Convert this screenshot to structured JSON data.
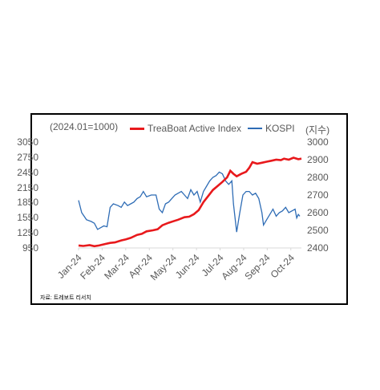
{
  "chart_data": {
    "type": "line",
    "left_axis_note": "(2024.01=1000)",
    "right_axis_unit": "(지수)",
    "source": "자료: 트레보트 리서치",
    "x_ticks": [
      "Jan-24",
      "Feb-24",
      "Mar-24",
      "Apr-24",
      "May-24",
      "Jun-24",
      "Jul-24",
      "Aug-24",
      "Sep-24",
      "Oct-24"
    ],
    "left_ylim": [
      950,
      3050
    ],
    "left_yticks": [
      3050,
      2750,
      2450,
      2150,
      1850,
      1550,
      1250,
      950
    ],
    "right_ylim": [
      2400,
      3000
    ],
    "right_yticks": [
      3000,
      2900,
      2800,
      2700,
      2600,
      2500,
      2400
    ],
    "legend_position": "top",
    "colors": {
      "treaboat": "#e8191c",
      "kospi": "#2e6cb5"
    },
    "series": [
      {
        "name": "TreaBoat Active Index",
        "axis": "left",
        "points": [
          [
            0,
            1000
          ],
          [
            0.3,
            990
          ],
          [
            0.7,
            1005
          ],
          [
            1.0,
            985
          ],
          [
            1.3,
            1000
          ],
          [
            1.7,
            1030
          ],
          [
            2.0,
            1050
          ],
          [
            2.3,
            1060
          ],
          [
            2.7,
            1100
          ],
          [
            3.0,
            1120
          ],
          [
            3.3,
            1150
          ],
          [
            3.7,
            1210
          ],
          [
            4.0,
            1230
          ],
          [
            4.3,
            1280
          ],
          [
            4.7,
            1300
          ],
          [
            5.0,
            1320
          ],
          [
            5.3,
            1400
          ],
          [
            5.7,
            1450
          ],
          [
            6.0,
            1480
          ],
          [
            6.3,
            1510
          ],
          [
            6.7,
            1560
          ],
          [
            7.0,
            1570
          ],
          [
            7.3,
            1620
          ],
          [
            7.6,
            1700
          ],
          [
            7.9,
            1860
          ],
          [
            8.2,
            1980
          ],
          [
            8.5,
            2100
          ],
          [
            8.8,
            2180
          ],
          [
            9.1,
            2260
          ],
          [
            9.4,
            2350
          ],
          [
            9.6,
            2480
          ],
          [
            9.8,
            2420
          ],
          [
            10.0,
            2370
          ],
          [
            10.3,
            2420
          ],
          [
            10.6,
            2460
          ],
          [
            10.8,
            2540
          ],
          [
            11.0,
            2650
          ],
          [
            11.3,
            2620
          ],
          [
            11.6,
            2640
          ],
          [
            11.9,
            2660
          ],
          [
            12.2,
            2680
          ],
          [
            12.5,
            2700
          ],
          [
            12.8,
            2690
          ],
          [
            13.0,
            2720
          ],
          [
            13.3,
            2700
          ],
          [
            13.6,
            2740
          ],
          [
            13.9,
            2710
          ],
          [
            14.1,
            2720
          ]
        ]
      },
      {
        "name": "KOSPI",
        "axis": "right",
        "points": [
          [
            0,
            2670
          ],
          [
            0.2,
            2600
          ],
          [
            0.5,
            2560
          ],
          [
            0.8,
            2550
          ],
          [
            1.0,
            2540
          ],
          [
            1.2,
            2505
          ],
          [
            1.4,
            2515
          ],
          [
            1.6,
            2525
          ],
          [
            1.8,
            2520
          ],
          [
            2.0,
            2630
          ],
          [
            2.2,
            2650
          ],
          [
            2.5,
            2640
          ],
          [
            2.7,
            2630
          ],
          [
            2.9,
            2660
          ],
          [
            3.1,
            2640
          ],
          [
            3.3,
            2650
          ],
          [
            3.5,
            2660
          ],
          [
            3.7,
            2680
          ],
          [
            3.9,
            2690
          ],
          [
            4.1,
            2720
          ],
          [
            4.3,
            2690
          ],
          [
            4.6,
            2700
          ],
          [
            4.9,
            2700
          ],
          [
            5.1,
            2620
          ],
          [
            5.3,
            2600
          ],
          [
            5.5,
            2650
          ],
          [
            5.7,
            2660
          ],
          [
            5.9,
            2680
          ],
          [
            6.1,
            2700
          ],
          [
            6.3,
            2710
          ],
          [
            6.5,
            2720
          ],
          [
            6.7,
            2700
          ],
          [
            6.9,
            2680
          ],
          [
            7.1,
            2730
          ],
          [
            7.3,
            2700
          ],
          [
            7.5,
            2720
          ],
          [
            7.7,
            2660
          ],
          [
            7.9,
            2720
          ],
          [
            8.1,
            2750
          ],
          [
            8.3,
            2780
          ],
          [
            8.5,
            2800
          ],
          [
            8.7,
            2810
          ],
          [
            8.9,
            2830
          ],
          [
            9.1,
            2820
          ],
          [
            9.3,
            2780
          ],
          [
            9.5,
            2760
          ],
          [
            9.7,
            2780
          ],
          [
            9.8,
            2650
          ],
          [
            10.0,
            2490
          ],
          [
            10.2,
            2600
          ],
          [
            10.4,
            2700
          ],
          [
            10.6,
            2720
          ],
          [
            10.8,
            2720
          ],
          [
            11.0,
            2700
          ],
          [
            11.2,
            2710
          ],
          [
            11.4,
            2680
          ],
          [
            11.6,
            2600
          ],
          [
            11.7,
            2530
          ],
          [
            11.9,
            2560
          ],
          [
            12.1,
            2590
          ],
          [
            12.3,
            2620
          ],
          [
            12.5,
            2580
          ],
          [
            12.7,
            2600
          ],
          [
            12.9,
            2610
          ],
          [
            13.1,
            2630
          ],
          [
            13.3,
            2600
          ],
          [
            13.5,
            2610
          ],
          [
            13.7,
            2620
          ],
          [
            13.8,
            2570
          ],
          [
            13.9,
            2590
          ],
          [
            14.0,
            2580
          ]
        ]
      }
    ]
  }
}
